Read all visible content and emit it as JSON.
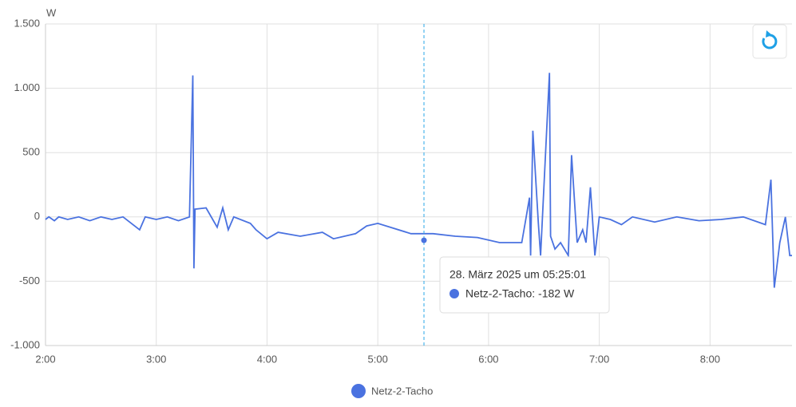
{
  "chart_data": {
    "type": "line",
    "unit": "W",
    "x": [
      2.0,
      2.03,
      2.08,
      2.12,
      2.2,
      2.3,
      2.4,
      2.5,
      2.6,
      2.7,
      2.85,
      2.9,
      3.0,
      3.1,
      3.2,
      3.3,
      3.33,
      3.34,
      3.35,
      3.45,
      3.55,
      3.6,
      3.65,
      3.7,
      3.85,
      3.9,
      4.0,
      4.1,
      4.3,
      4.5,
      4.6,
      4.8,
      4.9,
      5.0,
      5.3,
      5.5,
      5.7,
      5.9,
      6.1,
      6.3,
      6.33,
      6.37,
      6.38,
      6.4,
      6.45,
      6.47,
      6.55,
      6.56,
      6.6,
      6.65,
      6.72,
      6.75,
      6.8,
      6.85,
      6.88,
      6.92,
      6.96,
      7.0,
      7.1,
      7.2,
      7.3,
      7.5,
      7.7,
      7.9,
      8.1,
      8.3,
      8.5,
      8.55,
      8.58,
      8.63,
      8.68,
      8.72,
      8.74
    ],
    "series": [
      {
        "name": "Netz-2-Tacho",
        "color": "#4a72e0",
        "values": [
          -20,
          0,
          -30,
          0,
          -20,
          0,
          -30,
          0,
          -20,
          0,
          -100,
          0,
          -20,
          0,
          -30,
          0,
          1100,
          -400,
          60,
          70,
          -80,
          70,
          -100,
          0,
          -50,
          -100,
          -170,
          -120,
          -150,
          -120,
          -170,
          -130,
          -70,
          -50,
          -130,
          -130,
          -150,
          -160,
          -200,
          -200,
          -50,
          150,
          -300,
          670,
          -50,
          -300,
          1120,
          -150,
          -250,
          -200,
          -300,
          480,
          -200,
          -100,
          -200,
          230,
          -300,
          0,
          -20,
          -60,
          0,
          -40,
          0,
          -30,
          -20,
          0,
          -60,
          290,
          -550,
          -200,
          0,
          -300,
          -300
        ]
      }
    ],
    "xlim": [
      2,
      8.74
    ],
    "xticks": [
      {
        "value": 2,
        "label": "2:00"
      },
      {
        "value": 3,
        "label": "3:00"
      },
      {
        "value": 4,
        "label": "4:00"
      },
      {
        "value": 5,
        "label": "5:00"
      },
      {
        "value": 6,
        "label": "6:00"
      },
      {
        "value": 7,
        "label": "7:00"
      },
      {
        "value": 8,
        "label": "8:00"
      }
    ],
    "ylim": [
      -1000,
      1500
    ],
    "yticks": [
      {
        "value": -1000,
        "label": "-1.000"
      },
      -500,
      0,
      500,
      {
        "value": 1000,
        "label": "1.000"
      },
      {
        "value": 1500,
        "label": "1.500"
      }
    ],
    "grid": true,
    "tooltip": {
      "title": "28. März 2025 um 05:25:01",
      "text": "Netz-2-Tacho: -182 W",
      "x": 5.417,
      "value": -182
    }
  }
}
